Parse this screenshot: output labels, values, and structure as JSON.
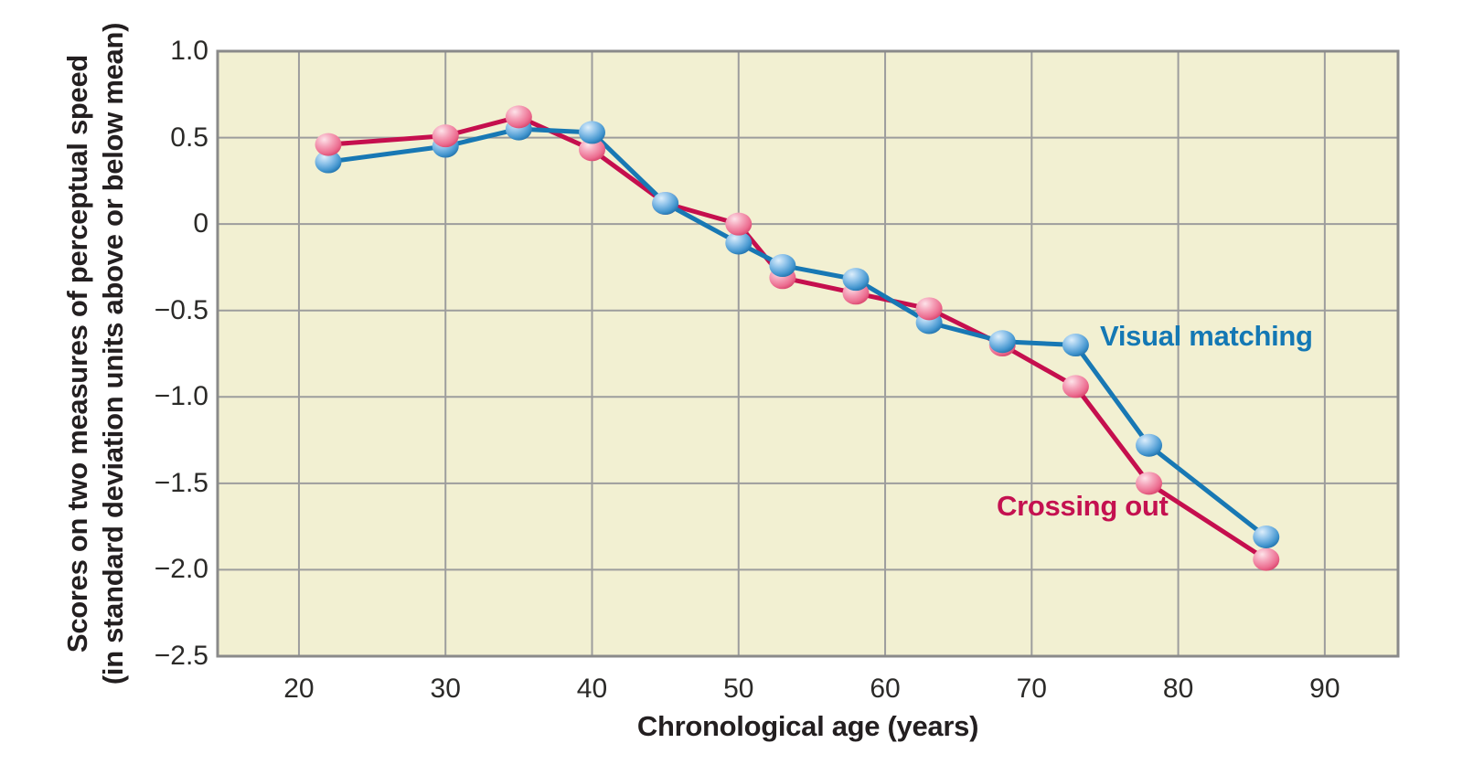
{
  "chart_data": {
    "type": "line",
    "x": [
      22,
      30,
      35,
      40,
      45,
      50,
      53,
      58,
      63,
      68,
      73,
      78,
      86
    ],
    "series": [
      {
        "name": "Crossing out",
        "line_color": "#c50f4e",
        "label_color": "#c41150",
        "marker": {
          "highlight": "#fde3e9",
          "mid": "#f5a3ba",
          "base": "#ec6d90",
          "edge": "#d43e66"
        },
        "values": [
          0.46,
          0.51,
          0.62,
          0.43,
          0.12,
          0.0,
          -0.31,
          -0.4,
          -0.49,
          -0.7,
          -0.94,
          -1.5,
          -1.94
        ]
      },
      {
        "name": "Visual matching",
        "line_color": "#1878b4",
        "label_color": "#1478b4",
        "marker": {
          "highlight": "#ddeefb",
          "mid": "#8fc3ea",
          "base": "#4496cf",
          "edge": "#1a6ca6"
        },
        "values": [
          0.36,
          0.45,
          0.55,
          0.53,
          0.12,
          -0.11,
          -0.24,
          -0.32,
          -0.57,
          -0.68,
          -0.7,
          -1.28,
          -1.81
        ]
      }
    ],
    "xlabel": "Chronological age (years)",
    "ylabel_line1": "Scores on two measures of perceptual speed",
    "ylabel_line2": "(in standard deviation units above or below mean)",
    "xlim": [
      14.45,
      95
    ],
    "ylim": [
      -2.5,
      1.0
    ],
    "x_ticks": [
      20,
      30,
      40,
      50,
      60,
      70,
      80,
      90
    ],
    "y_ticks": [
      {
        "value": 1.0,
        "label": "1.0"
      },
      {
        "value": 0.5,
        "label": "0.5"
      },
      {
        "value": 0.0,
        "label": "0"
      },
      {
        "value": -0.5,
        "label": "−0.5"
      },
      {
        "value": -1.0,
        "label": "−1.0"
      },
      {
        "value": -1.5,
        "label": "−1.5"
      },
      {
        "value": -2.0,
        "label": "−2.0"
      },
      {
        "value": -2.5,
        "label": "−2.5"
      }
    ],
    "grid": true,
    "legend_position": "inline-labels",
    "colors": {
      "plot_background": "#f2f0d2",
      "grid_line": "#9d9d9d",
      "plot_border": "#8a8a8a",
      "text": "#231f20"
    }
  }
}
